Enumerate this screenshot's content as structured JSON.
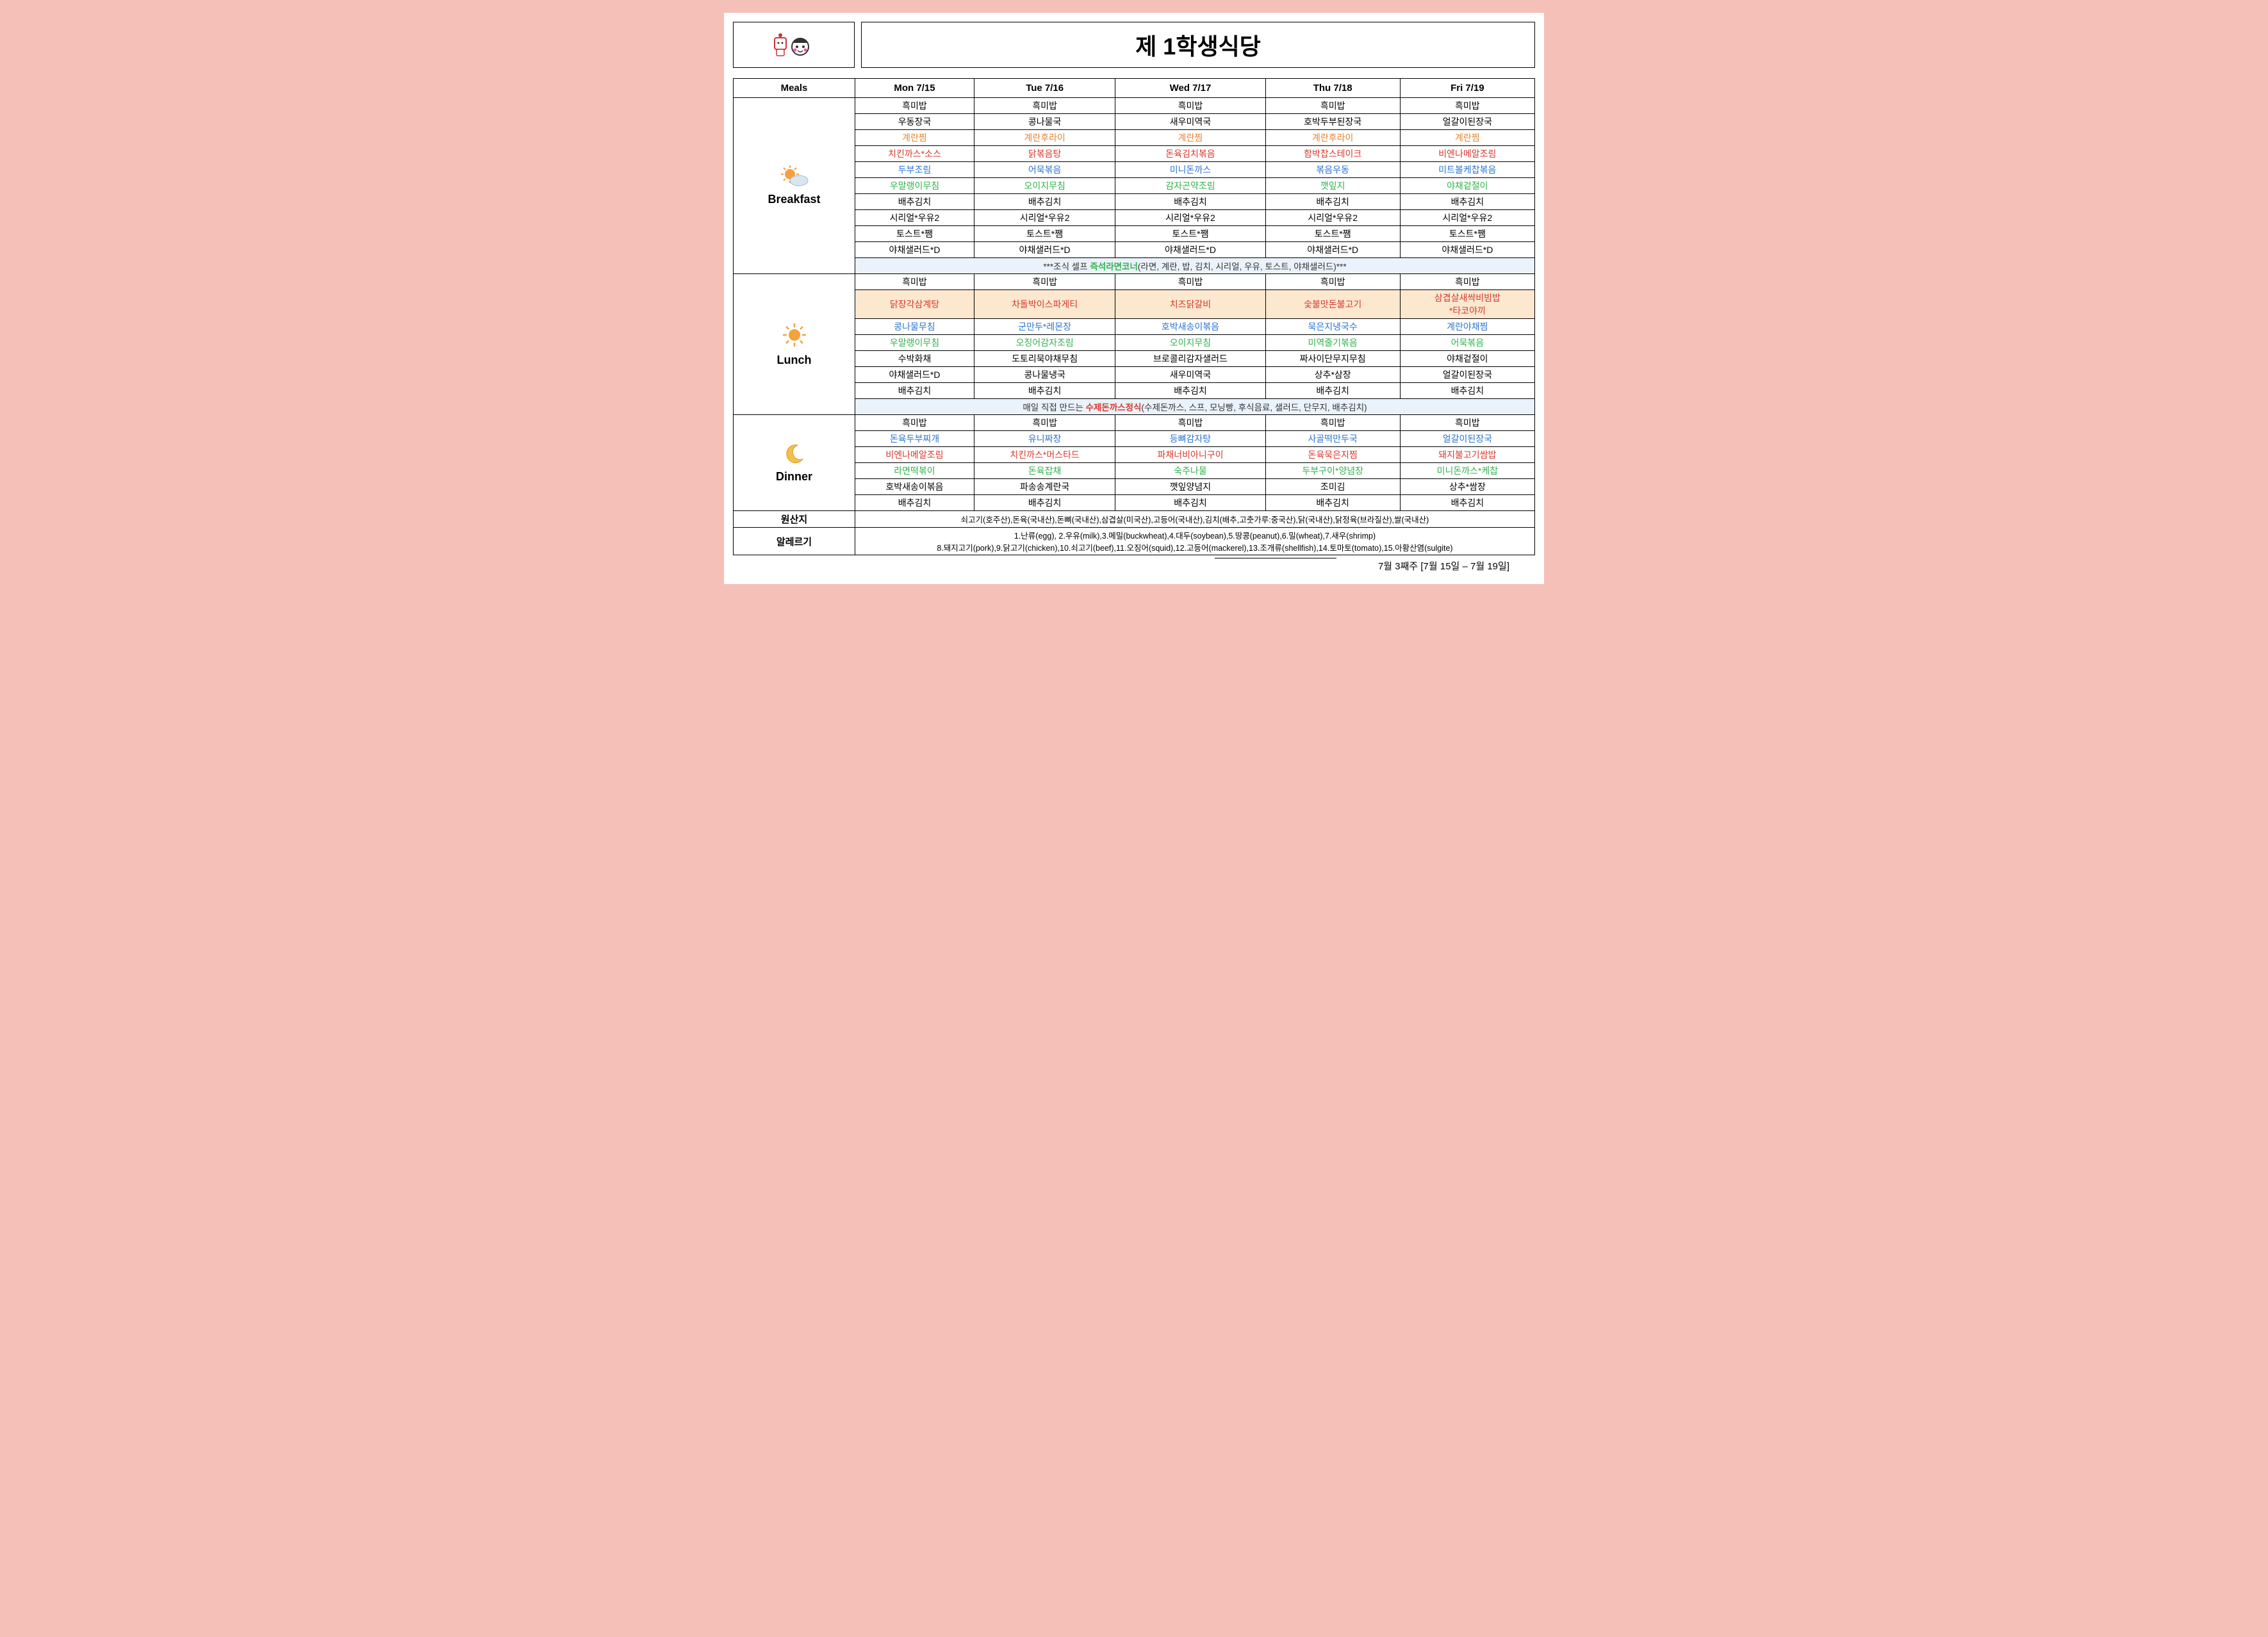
{
  "title": "제 1학생식당",
  "columns": [
    "Meals",
    "Mon 7/15",
    "Tue 7/16",
    "Wed 7/17",
    "Thu 7/18",
    "Fri 7/19"
  ],
  "colors": {
    "black": "#000000",
    "red": "#d9372c",
    "orange": "#e8842e",
    "blue": "#2a74d0",
    "green": "#2fb34a",
    "note_bg": "#eaf2fb",
    "highlight_bg": "#fbe8cf",
    "page_bg": "#f5c0b8"
  },
  "meals": [
    {
      "name": "Breakfast",
      "icon": "sun-cloud",
      "items": [
        [
          {
            "t": "흑미밥",
            "c": "black"
          },
          {
            "t": "우동장국",
            "c": "black"
          },
          {
            "t": "계란찜",
            "c": "orange"
          },
          {
            "t": "치킨까스*소스",
            "c": "red"
          },
          {
            "t": "두부조림",
            "c": "blue"
          },
          {
            "t": "우말랭이무침",
            "c": "green"
          },
          {
            "t": "배추김치",
            "c": "black"
          },
          {
            "t": "시리얼*우유2",
            "c": "black"
          },
          {
            "t": "토스트*쨈",
            "c": "black"
          },
          {
            "t": "야채샐러드*D",
            "c": "black"
          }
        ],
        [
          {
            "t": "흑미밥",
            "c": "black"
          },
          {
            "t": "콩나물국",
            "c": "black"
          },
          {
            "t": "계란후라이",
            "c": "orange"
          },
          {
            "t": "닭볶음탕",
            "c": "red"
          },
          {
            "t": "어묵볶음",
            "c": "blue"
          },
          {
            "t": "오이지무침",
            "c": "green"
          },
          {
            "t": "배추김치",
            "c": "black"
          },
          {
            "t": "시리얼*우유2",
            "c": "black"
          },
          {
            "t": "토스트*쨈",
            "c": "black"
          },
          {
            "t": "야채샐러드*D",
            "c": "black"
          }
        ],
        [
          {
            "t": "흑미밥",
            "c": "black"
          },
          {
            "t": "새우미역국",
            "c": "black"
          },
          {
            "t": "계란찜",
            "c": "orange"
          },
          {
            "t": "돈육김치볶음",
            "c": "red"
          },
          {
            "t": "미니돈까스",
            "c": "blue"
          },
          {
            "t": "감자곤약조림",
            "c": "green"
          },
          {
            "t": "배추김치",
            "c": "black"
          },
          {
            "t": "시리얼*우유2",
            "c": "black"
          },
          {
            "t": "토스트*쨈",
            "c": "black"
          },
          {
            "t": "야채샐러드*D",
            "c": "black"
          }
        ],
        [
          {
            "t": "흑미밥",
            "c": "black"
          },
          {
            "t": "호박두부된장국",
            "c": "black"
          },
          {
            "t": "계란후라이",
            "c": "orange"
          },
          {
            "t": "함박찹스테이크",
            "c": "red"
          },
          {
            "t": "볶음우동",
            "c": "blue"
          },
          {
            "t": "깻잎지",
            "c": "green"
          },
          {
            "t": "배추김치",
            "c": "black"
          },
          {
            "t": "시리얼*우유2",
            "c": "black"
          },
          {
            "t": "토스트*쨈",
            "c": "black"
          },
          {
            "t": "야채샐러드*D",
            "c": "black"
          }
        ],
        [
          {
            "t": "흑미밥",
            "c": "black"
          },
          {
            "t": "얼갈이된장국",
            "c": "black"
          },
          {
            "t": "계란찜",
            "c": "orange"
          },
          {
            "t": "비엔나메알조림",
            "c": "red"
          },
          {
            "t": "미트볼케찹볶음",
            "c": "blue"
          },
          {
            "t": "야채겉절이",
            "c": "green"
          },
          {
            "t": "배추김치",
            "c": "black"
          },
          {
            "t": "시리얼*우유2",
            "c": "black"
          },
          {
            "t": "토스트*쨈",
            "c": "black"
          },
          {
            "t": "야채샐러드*D",
            "c": "black"
          }
        ]
      ],
      "note": {
        "pre": "***조식 셀프 ",
        "em": "즉석라면코너",
        "post": "(라면, 계란, 밥, 김치, 시리얼, 우유, 토스트, 야채샐러드)***",
        "em_color": "green"
      }
    },
    {
      "name": "Lunch",
      "icon": "sun",
      "items": [
        [
          {
            "t": "흑미밥",
            "c": "black"
          },
          {
            "t": "닭장각삼계탕",
            "c": "red",
            "hl": true
          },
          {
            "t": "콩나물무침",
            "c": "blue"
          },
          {
            "t": "우말랭이무침",
            "c": "green"
          },
          {
            "t": "수박화채",
            "c": "black"
          },
          {
            "t": "야채샐러드*D",
            "c": "black"
          },
          {
            "t": "배추김치",
            "c": "black"
          }
        ],
        [
          {
            "t": "흑미밥",
            "c": "black"
          },
          {
            "t": "차돌박이스파게티",
            "c": "red",
            "hl": true
          },
          {
            "t": "군만두*레몬장",
            "c": "blue"
          },
          {
            "t": "오징어감자조림",
            "c": "green"
          },
          {
            "t": "도토리묵야채무침",
            "c": "black"
          },
          {
            "t": "콩나물냉국",
            "c": "black"
          },
          {
            "t": "배추김치",
            "c": "black"
          }
        ],
        [
          {
            "t": "흑미밥",
            "c": "black"
          },
          {
            "t": "치즈닭갈비",
            "c": "red",
            "hl": true
          },
          {
            "t": "호박새송이볶음",
            "c": "blue"
          },
          {
            "t": "오이지무침",
            "c": "green"
          },
          {
            "t": "브로콜리감자샐러드",
            "c": "black"
          },
          {
            "t": "새우미역국",
            "c": "black"
          },
          {
            "t": "배추김치",
            "c": "black"
          }
        ],
        [
          {
            "t": "흑미밥",
            "c": "black"
          },
          {
            "t": "숯불맛돈불고기",
            "c": "red",
            "hl": true
          },
          {
            "t": "묵은지냉국수",
            "c": "blue"
          },
          {
            "t": "미역줄기볶음",
            "c": "green"
          },
          {
            "t": "짜사이단무지무침",
            "c": "black"
          },
          {
            "t": "상추*삼장",
            "c": "black"
          },
          {
            "t": "배추김치",
            "c": "black"
          }
        ],
        [
          {
            "t": "흑미밥",
            "c": "black"
          },
          {
            "t": "삼겹살새싹비빔밥\n*타코야끼",
            "c": "red",
            "hl": true
          },
          {
            "t": "계란야채찜",
            "c": "blue"
          },
          {
            "t": "어묵볶음",
            "c": "green"
          },
          {
            "t": "야채겉절이",
            "c": "black"
          },
          {
            "t": "얼갈이된장국",
            "c": "black"
          },
          {
            "t": "배추김치",
            "c": "black"
          }
        ]
      ],
      "note": {
        "pre": "매일 직접 만드는 ",
        "em": "수제돈까스정식",
        "post": "(수제돈까스, 스프, 모닝빵, 후식음료, 샐러드, 단무지, 배추김치)",
        "em_color": "red"
      }
    },
    {
      "name": "Dinner",
      "icon": "moon",
      "items": [
        [
          {
            "t": "흑미밥",
            "c": "black"
          },
          {
            "t": "돈육두부찌개",
            "c": "blue"
          },
          {
            "t": "비엔나메알조림",
            "c": "red"
          },
          {
            "t": "라면떡볶이",
            "c": "green"
          },
          {
            "t": "호박새송이볶음",
            "c": "black"
          },
          {
            "t": "배추김치",
            "c": "black"
          }
        ],
        [
          {
            "t": "흑미밥",
            "c": "black"
          },
          {
            "t": "유니짜장",
            "c": "blue"
          },
          {
            "t": "치킨까스*머스타드",
            "c": "red"
          },
          {
            "t": "돈육잡채",
            "c": "green"
          },
          {
            "t": "파송송계란국",
            "c": "black"
          },
          {
            "t": "배추김치",
            "c": "black"
          }
        ],
        [
          {
            "t": "흑미밥",
            "c": "black"
          },
          {
            "t": "등뼈감자탕",
            "c": "blue"
          },
          {
            "t": "파채너비아니구이",
            "c": "red"
          },
          {
            "t": "숙주나물",
            "c": "green"
          },
          {
            "t": "깻잎양념지",
            "c": "black"
          },
          {
            "t": "배추김치",
            "c": "black"
          }
        ],
        [
          {
            "t": "흑미밥",
            "c": "black"
          },
          {
            "t": "사골떡만두국",
            "c": "blue"
          },
          {
            "t": "돈육묵은지찜",
            "c": "red"
          },
          {
            "t": "두부구이*양념장",
            "c": "green"
          },
          {
            "t": "조미김",
            "c": "black"
          },
          {
            "t": "배추김치",
            "c": "black"
          }
        ],
        [
          {
            "t": "흑미밥",
            "c": "black"
          },
          {
            "t": "얼갈이된장국",
            "c": "blue"
          },
          {
            "t": "돼지불고기쌈밥",
            "c": "red"
          },
          {
            "t": "미니돈까스*케찹",
            "c": "green"
          },
          {
            "t": "상추*쌈장",
            "c": "black"
          },
          {
            "t": "배추김치",
            "c": "black"
          }
        ]
      ]
    }
  ],
  "origin": {
    "label": "원산지",
    "text": "쇠고기(호주산),돈육(국내산),돈뼈(국내산),삼겹살(미국산),고등어(국내산),김치(배추,고춧가루:중국산),닭(국내산),닭정육(브라질산),쌀(국내산)"
  },
  "allergy": {
    "label": "알레르기",
    "line1": "1.난류(egg), 2.우유(milk),3.메밀(buckwheat),4.대두(soybean),5.땅콩(peanut),6.밀(wheat),7.새우(shrimp)",
    "line2": "8.돼지고기(pork),9.닭고기(chicken),10.쇠고기(beef),11.오징어(squid),12.고등어(mackerel),13.조개류(shellfish),14.토마토(tomato),15.아황산염(sulgite)"
  },
  "week": "7월 3째주 [7월 15일 – 7월 19일]"
}
